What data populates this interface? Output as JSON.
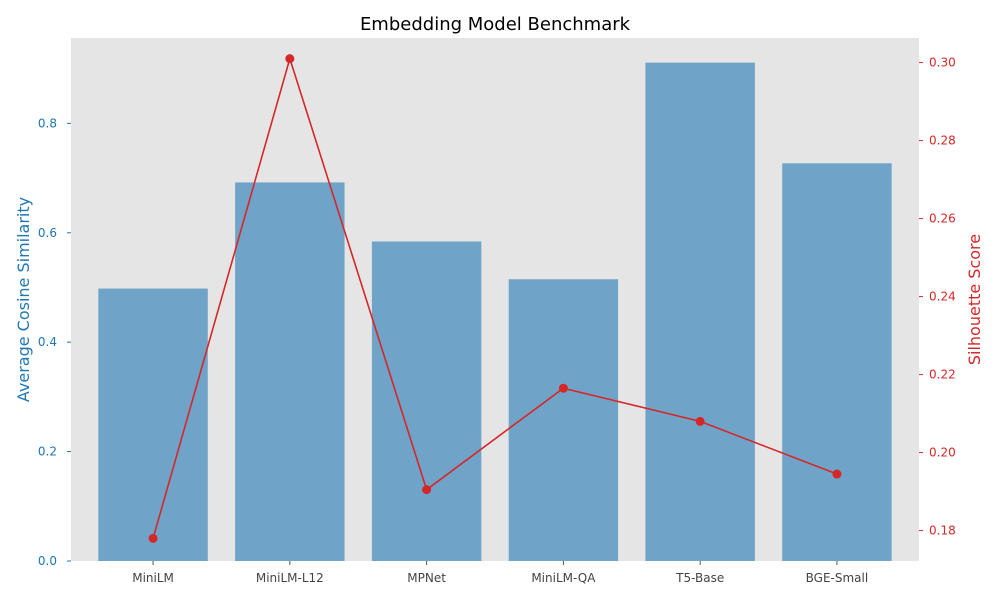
{
  "chart_data": {
    "type": "bar",
    "title": "Embedding Model Benchmark",
    "categories": [
      "MiniLM",
      "MiniLM-L12",
      "MPNet",
      "MiniLM-QA",
      "T5-Base",
      "BGE-Small"
    ],
    "series": [
      {
        "name": "Average Cosine Similarity",
        "type": "bar",
        "axis": "left",
        "color": "#1f77b4",
        "values": [
          0.498,
          0.692,
          0.584,
          0.515,
          0.911,
          0.727
        ]
      },
      {
        "name": "Silhouette Score",
        "type": "line",
        "axis": "right",
        "color": "#d62728",
        "values": [
          0.178,
          0.301,
          0.1905,
          0.2165,
          0.208,
          0.1945
        ]
      }
    ],
    "left_axis": {
      "label": "Average Cosine Similarity",
      "ylim": [
        0,
        0.956
      ],
      "ticks": [
        "0.0",
        "0.2",
        "0.4",
        "0.6",
        "0.8"
      ],
      "tick_values": [
        0,
        0.2,
        0.4,
        0.6,
        0.8
      ],
      "color": "#1f77b4"
    },
    "right_axis": {
      "label": "Silhouette Score",
      "ylim": [
        0.1722,
        0.3063
      ],
      "ticks": [
        "0.18",
        "0.20",
        "0.22",
        "0.24",
        "0.26",
        "0.28",
        "0.30"
      ],
      "tick_values": [
        0.18,
        0.2,
        0.22,
        0.24,
        0.26,
        0.28,
        0.3
      ],
      "color": "#d62728"
    },
    "grid": false,
    "background": "#e5e5e5"
  }
}
